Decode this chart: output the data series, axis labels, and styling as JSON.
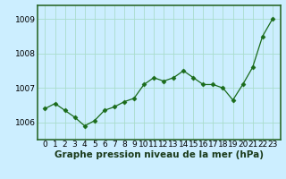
{
  "x": [
    0,
    1,
    2,
    3,
    4,
    5,
    6,
    7,
    8,
    9,
    10,
    11,
    12,
    13,
    14,
    15,
    16,
    17,
    18,
    19,
    20,
    21,
    22,
    23
  ],
  "y": [
    1006.4,
    1006.55,
    1006.35,
    1006.15,
    1005.9,
    1006.05,
    1006.35,
    1006.45,
    1006.6,
    1006.7,
    1007.1,
    1007.3,
    1007.2,
    1007.3,
    1007.5,
    1007.3,
    1007.1,
    1007.1,
    1007.0,
    1006.65,
    1007.1,
    1007.6,
    1008.5,
    1009.0
  ],
  "line_color": "#1a6b1a",
  "marker": "D",
  "marker_size": 2.5,
  "bg_color": "#cceeff",
  "grid_color": "#aaddcc",
  "ylim": [
    1005.5,
    1009.4
  ],
  "yticks": [
    1006,
    1007,
    1008,
    1009
  ],
  "xlabel_text": "Graphe pression niveau de la mer (hPa)",
  "label_fontsize": 7.5,
  "tick_fontsize": 6.5
}
